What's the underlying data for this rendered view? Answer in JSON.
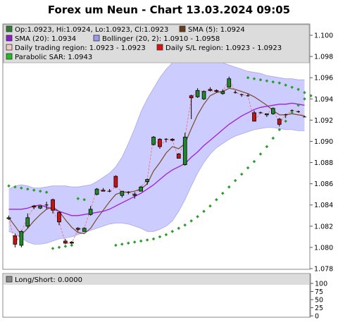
{
  "chart_data": {
    "type": "candlestick",
    "title": "Forex um Neun - Chart 13.03.2024 09:05",
    "ylim": [
      1.078,
      1.101
    ],
    "y_ticks": [
      "1.078",
      "1.080",
      "1.082",
      "1.084",
      "1.086",
      "1.088",
      "1.090",
      "1.092",
      "1.094",
      "1.096",
      "1.098",
      "1.100"
    ],
    "legend": [
      {
        "label": "Op:1.0923, Hi:1.0924, Lo:1.0923, Cl:1.0923",
        "color": "#2e7d32"
      },
      {
        "label": "SMA (5): 1.0924",
        "color": "#6b3a1f"
      },
      {
        "label": "SMA (20): 1.0934",
        "color": "#8b1fc9"
      },
      {
        "label": "Bollinger (20, 2): 1.0910 - 1.0958",
        "color": "#9999ee"
      },
      {
        "label": "Daily trading region: 1.0923 - 1.0923",
        "color": "#f2c8c8"
      },
      {
        "label": "Daily S/L region: 1.0923 - 1.0923",
        "color": "#dd1111"
      },
      {
        "label": "Parabolic SAR: 1.0943",
        "color": "#22bb22"
      }
    ],
    "candles": [
      [
        1.0827,
        1.083,
        1.0826,
        1.0828
      ],
      [
        1.0811,
        1.0813,
        1.08,
        1.0803
      ],
      [
        1.0802,
        1.0816,
        1.08,
        1.0815
      ],
      [
        1.082,
        1.0832,
        1.0818,
        1.0828
      ],
      [
        1.0839,
        1.084,
        1.0836,
        1.0838
      ],
      [
        1.0837,
        1.0839,
        1.0836,
        1.0839
      ],
      [
        1.084,
        1.0843,
        1.0836,
        1.084
      ],
      [
        1.0845,
        1.0846,
        1.0832,
        1.0835
      ],
      [
        1.0833,
        1.0834,
        1.0821,
        1.0824
      ],
      [
        1.0806,
        1.0808,
        1.0803,
        1.0804
      ],
      [
        1.0805,
        1.0806,
        1.0803,
        1.0804
      ],
      [
        1.0818,
        1.0819,
        1.0815,
        1.0817
      ],
      [
        1.0815,
        1.0819,
        1.0815,
        1.0818
      ],
      [
        1.0831,
        1.0839,
        1.083,
        1.0836
      ],
      [
        1.085,
        1.0856,
        1.0849,
        1.0855
      ],
      [
        1.0854,
        1.0856,
        1.0853,
        1.0853
      ],
      [
        1.0853,
        1.0855,
        1.0852,
        1.0853
      ],
      [
        1.0867,
        1.0868,
        1.0856,
        1.0857
      ],
      [
        1.0849,
        1.0853,
        1.0847,
        1.0853
      ],
      [
        1.0852,
        1.0853,
        1.085,
        1.0852
      ],
      [
        1.0849,
        1.0852,
        1.0846,
        1.085
      ],
      [
        1.0853,
        1.0858,
        1.0853,
        1.0857
      ],
      [
        1.0862,
        1.0865,
        1.0859,
        1.0864
      ],
      [
        1.0897,
        1.0905,
        1.0896,
        1.0904
      ],
      [
        1.0902,
        1.0903,
        1.0893,
        1.0895
      ],
      [
        1.0902,
        1.0903,
        1.0899,
        1.0902
      ],
      [
        1.0902,
        1.0903,
        1.09,
        1.0901
      ],
      [
        1.0888,
        1.0889,
        1.0884,
        1.0884
      ],
      [
        1.0878,
        1.0908,
        1.0877,
        1.0904
      ],
      [
        1.0943,
        1.0944,
        1.0921,
        1.0941
      ],
      [
        1.0942,
        1.095,
        1.0941,
        1.0948
      ],
      [
        1.094,
        1.0948,
        1.0939,
        1.0947
      ],
      [
        1.0949,
        1.0951,
        1.0947,
        1.0948
      ],
      [
        1.0948,
        1.0949,
        1.0946,
        1.0947
      ],
      [
        1.0945,
        1.0949,
        1.0944,
        1.0947
      ],
      [
        1.0951,
        1.0961,
        1.0951,
        1.0959
      ],
      [
        1.0946,
        1.0948,
        1.0945,
        1.0946
      ],
      [
        1.0944,
        1.0945,
        1.0942,
        1.0944
      ],
      [
        1.0943,
        1.0945,
        1.0942,
        1.0943
      ],
      [
        1.0927,
        1.0929,
        1.0919,
        1.0919
      ],
      [
        1.0927,
        1.0928,
        1.0926,
        1.0927
      ],
      [
        1.0925,
        1.0926,
        1.0923,
        1.0926
      ],
      [
        1.0926,
        1.0932,
        1.0925,
        1.0931
      ],
      [
        1.0921,
        1.0922,
        1.0914,
        1.0916
      ],
      [
        1.0925,
        1.0926,
        1.0922,
        1.0925
      ],
      [
        1.0929,
        1.093,
        1.0928,
        1.0929
      ],
      [
        1.0928,
        1.0929,
        1.0927,
        1.0928
      ],
      [
        1.0923,
        1.0924,
        1.0923,
        1.0923
      ]
    ],
    "sma5": [
      1.0828,
      1.082,
      1.0812,
      1.0818,
      1.0825,
      1.0831,
      1.0836,
      1.0838,
      1.0834,
      1.0826,
      1.0819,
      1.0814,
      1.0813,
      1.0818,
      1.0827,
      1.0835,
      1.0843,
      1.085,
      1.0852,
      1.0852,
      1.0853,
      1.0855,
      1.086,
      1.0872,
      1.088,
      1.0889,
      1.0895,
      1.0893,
      1.0898,
      1.0912,
      1.0925,
      1.0935,
      1.0943,
      1.0946,
      1.0947,
      1.095,
      1.0949,
      1.0947,
      1.0945,
      1.0942,
      1.0938,
      1.0934,
      1.0929,
      1.0925,
      1.0925,
      1.0926,
      1.0925,
      1.0924
    ],
    "sma20": [
      1.0836,
      1.0836,
      1.0836,
      1.0837,
      1.0839,
      1.084,
      1.0838,
      1.0836,
      1.0834,
      1.0832,
      1.083,
      1.083,
      1.0831,
      1.0832,
      1.0833,
      1.0834,
      1.0836,
      1.0839,
      1.0842,
      1.0845,
      1.0848,
      1.0851,
      1.0855,
      1.0859,
      1.0864,
      1.0869,
      1.0873,
      1.0876,
      1.0879,
      1.0885,
      1.089,
      1.0896,
      1.0901,
      1.0906,
      1.0911,
      1.0916,
      1.092,
      1.0924,
      1.0927,
      1.093,
      1.0932,
      1.0933,
      1.0934,
      1.0935,
      1.0935,
      1.0936,
      1.0935,
      1.0934
    ],
    "bb_upper": [
      1.0855,
      1.0858,
      1.0859,
      1.0858,
      1.0856,
      1.0856,
      1.0857,
      1.0858,
      1.0858,
      1.0858,
      1.0857,
      1.0857,
      1.0858,
      1.0859,
      1.0862,
      1.0866,
      1.087,
      1.0876,
      1.0885,
      1.0898,
      1.0912,
      1.0928,
      1.094,
      1.095,
      1.096,
      1.0968,
      1.0974,
      1.0978,
      1.0981,
      1.0982,
      1.0981,
      1.098,
      1.0978,
      1.0976,
      1.0974,
      1.0972,
      1.097,
      1.0968,
      1.0966,
      1.0965,
      1.0964,
      1.0962,
      1.0961,
      1.096,
      1.0959,
      1.0959,
      1.0958,
      1.0958
    ],
    "bb_lower": [
      1.0815,
      1.0813,
      1.0809,
      1.0805,
      1.0803,
      1.0803,
      1.0804,
      1.0806,
      1.0808,
      1.0809,
      1.081,
      1.0812,
      1.0814,
      1.0816,
      1.0818,
      1.082,
      1.0822,
      1.0823,
      1.0823,
      1.0822,
      1.082,
      1.0818,
      1.0815,
      1.0815,
      1.0817,
      1.082,
      1.0825,
      1.0834,
      1.0845,
      1.0858,
      1.087,
      1.088,
      1.0888,
      1.0894,
      1.0898,
      1.0902,
      1.0905,
      1.0907,
      1.0909,
      1.0911,
      1.0912,
      1.0913,
      1.0913,
      1.0912,
      1.0911,
      1.0911,
      1.091,
      1.091
    ],
    "sar": [
      [
        0,
        1.0858
      ],
      [
        1,
        1.0857
      ],
      [
        2,
        1.0856
      ],
      [
        3,
        1.0855
      ],
      [
        4,
        1.0854
      ],
      [
        5,
        1.0853
      ],
      [
        6,
        1.0852
      ],
      [
        7,
        1.0799
      ],
      [
        8,
        1.08
      ],
      [
        9,
        1.0801
      ],
      [
        10,
        1.0802
      ],
      [
        11,
        1.0846
      ],
      [
        12,
        1.0845
      ],
      [
        17,
        1.0802
      ],
      [
        18,
        1.0803
      ],
      [
        19,
        1.0804
      ],
      [
        20,
        1.0805
      ],
      [
        21,
        1.0806
      ],
      [
        22,
        1.0807
      ],
      [
        23,
        1.0808
      ],
      [
        24,
        1.081
      ],
      [
        25,
        1.0812
      ],
      [
        26,
        1.0815
      ],
      [
        27,
        1.0818
      ],
      [
        28,
        1.0821
      ],
      [
        29,
        1.0825
      ],
      [
        30,
        1.0829
      ],
      [
        31,
        1.0834
      ],
      [
        32,
        1.0839
      ],
      [
        33,
        1.0845
      ],
      [
        34,
        1.0851
      ],
      [
        35,
        1.0857
      ],
      [
        36,
        1.0863
      ],
      [
        37,
        1.0869
      ],
      [
        38,
        1.0875
      ],
      [
        39,
        1.0881
      ],
      [
        40,
        1.0888
      ],
      [
        41,
        1.0895
      ],
      [
        42,
        1.0903
      ],
      [
        43,
        1.0911
      ],
      [
        44,
        1.0919
      ],
      [
        45,
        1.0927
      ],
      [
        46,
        1.0934
      ],
      [
        47,
        1.094
      ],
      [
        38,
        1.096
      ],
      [
        39,
        1.0959
      ],
      [
        40,
        1.0958
      ],
      [
        41,
        1.0957
      ],
      [
        42,
        1.0956
      ],
      [
        43,
        1.0955
      ],
      [
        44,
        1.0953
      ],
      [
        45,
        1.0951
      ],
      [
        46,
        1.0949
      ],
      [
        47,
        1.0946
      ],
      [
        48,
        1.0943
      ]
    ],
    "sub_panel": {
      "label": "Long/Short: 0.0000",
      "ylim": [
        0,
        100
      ],
      "y_ticks": [
        "0",
        "25",
        "50",
        "75",
        "100"
      ],
      "value": 0
    }
  }
}
